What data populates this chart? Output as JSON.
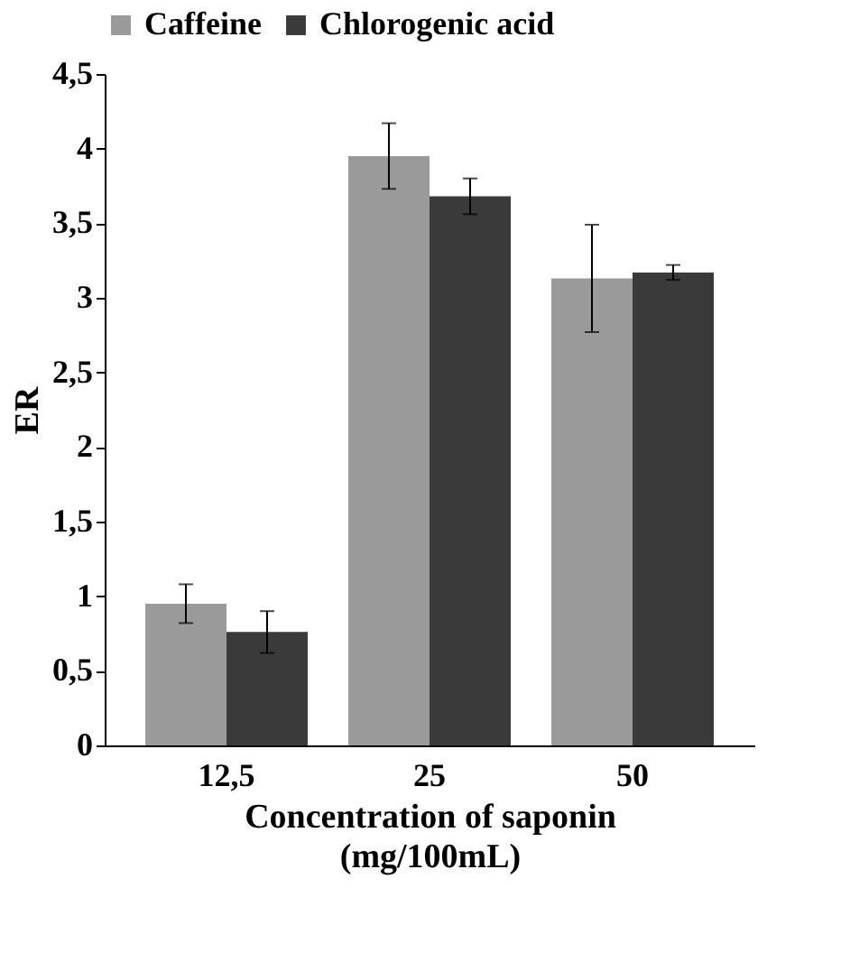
{
  "chart_data": {
    "type": "bar",
    "xlabel": "Concentration of saponin\n(mg/100mL)",
    "ylabel": "ER",
    "categories": [
      "12,5",
      "25",
      "50"
    ],
    "series": [
      {
        "name": "Caffeine",
        "color": "#9a9a9a",
        "values": [
          0.95,
          3.95,
          3.13
        ],
        "errors": [
          0.13,
          0.22,
          0.36
        ]
      },
      {
        "name": "Chlorogenic acid",
        "color": "#3a3a3a",
        "values": [
          0.76,
          3.68,
          3.17
        ],
        "errors": [
          0.14,
          0.12,
          0.05
        ]
      }
    ],
    "ylim": [
      0,
      4.5
    ],
    "yticks": [
      0,
      {
        "value": 0.5,
        "label": "0,5"
      },
      1,
      {
        "value": 1.5,
        "label": "1,5"
      },
      2,
      {
        "value": 2.5,
        "label": "2,5"
      },
      3,
      {
        "value": 3.5,
        "label": "3,5"
      },
      4,
      {
        "value": 4.5,
        "label": "4,5"
      }
    ],
    "grid": false,
    "legend": "top"
  }
}
